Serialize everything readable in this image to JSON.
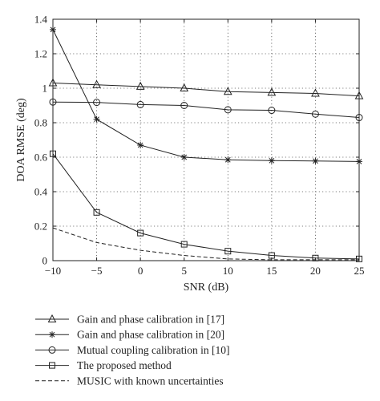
{
  "chart_data": {
    "type": "line",
    "xlabel": "SNR (dB)",
    "ylabel": "DOA RMSE (deg)",
    "xlim": [
      -10,
      25
    ],
    "ylim": [
      0,
      1.4
    ],
    "x_ticks": [
      -10,
      -5,
      0,
      5,
      10,
      15,
      20,
      25
    ],
    "y_ticks": [
      0,
      0.2,
      0.4,
      0.6,
      0.8,
      1,
      1.2,
      1.4
    ],
    "grid": "dotted",
    "legend_position": "below plot",
    "x": [
      -10,
      -5,
      0,
      5,
      10,
      15,
      20,
      25
    ],
    "series": [
      {
        "name": "Gain and phase calibration in [17]",
        "marker": "triangle",
        "line": "solid",
        "values": [
          1.03,
          1.02,
          1.01,
          1.0,
          0.98,
          0.975,
          0.97,
          0.955
        ]
      },
      {
        "name": "Gain and phase calibration in [20]",
        "marker": "star",
        "line": "solid",
        "values": [
          1.34,
          0.82,
          0.67,
          0.6,
          0.585,
          0.58,
          0.578,
          0.575
        ]
      },
      {
        "name": "Mutual coupling calibration in [10]",
        "marker": "circle",
        "line": "solid",
        "values": [
          0.92,
          0.918,
          0.905,
          0.9,
          0.875,
          0.872,
          0.85,
          0.83
        ]
      },
      {
        "name": "The proposed method",
        "marker": "square",
        "line": "solid",
        "values": [
          0.62,
          0.28,
          0.16,
          0.095,
          0.055,
          0.03,
          0.015,
          0.01
        ]
      },
      {
        "name": "MUSIC with known uncertainties",
        "marker": "none",
        "line": "dashed",
        "values": [
          0.19,
          0.105,
          0.06,
          0.03,
          0.01,
          0.005,
          0.005,
          0.005
        ]
      }
    ]
  }
}
